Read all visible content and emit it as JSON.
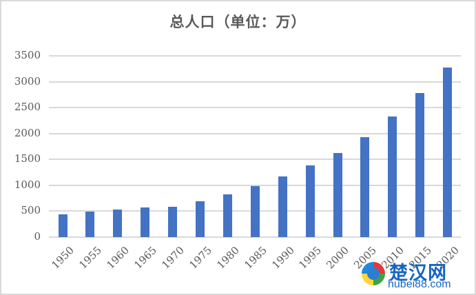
{
  "chart_data": {
    "type": "bar",
    "title": "总人口（单位：万）",
    "xlabel": "",
    "ylabel": "",
    "ylim": [
      0,
      3500
    ],
    "yticks": [
      0,
      500,
      1000,
      1500,
      2000,
      2500,
      3000,
      3500
    ],
    "grid": true,
    "legend": null,
    "color": "#4472c4",
    "categories": [
      "1950",
      "1955",
      "1960",
      "1965",
      "1970",
      "1975",
      "1980",
      "1985",
      "1990",
      "1995",
      "2000",
      "2005",
      "2010",
      "2015",
      "2020"
    ],
    "values": [
      440,
      490,
      530,
      570,
      585,
      690,
      825,
      985,
      1170,
      1385,
      1620,
      1930,
      2330,
      2780,
      3270
    ]
  },
  "watermark": {
    "name_cn": "楚汉网",
    "url": "hubei88.com"
  }
}
